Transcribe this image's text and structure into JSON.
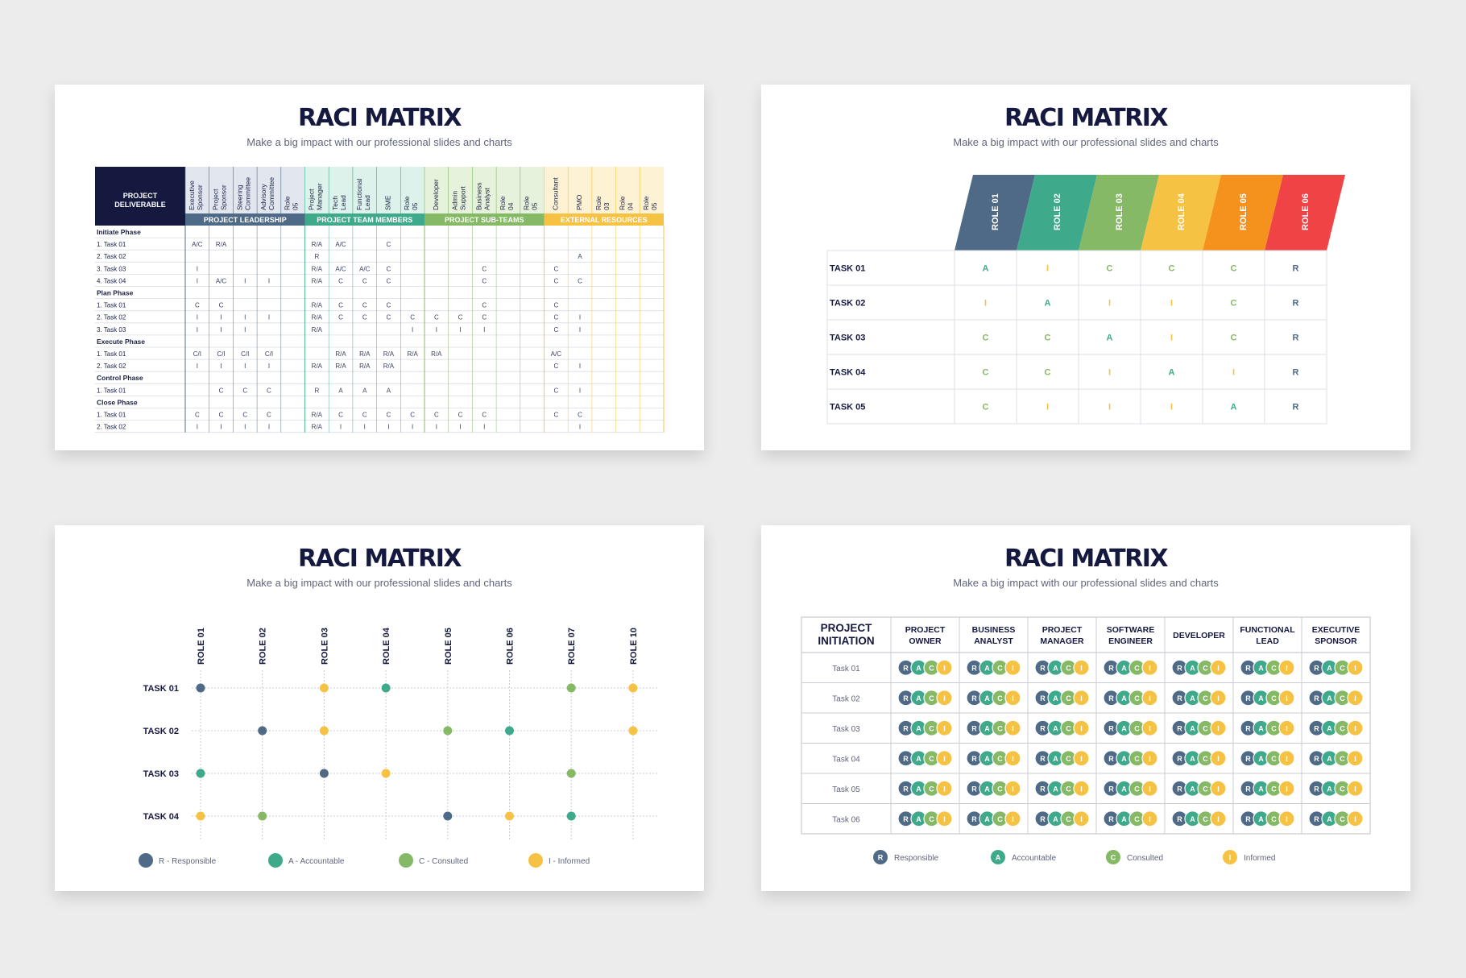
{
  "title": "RACI MATRIX",
  "subtitle": "Make a big impact with our professional slides and charts",
  "colors": {
    "navy": "#15193f",
    "slate": "#4f6a87",
    "green": "#3fa98b",
    "lime": "#86b965",
    "yellow": "#f6c243",
    "orange": "#f5921e",
    "red": "#ef4346"
  },
  "s1": {
    "deliverable": "PROJECT DELIVERABLE",
    "groups": [
      {
        "label": "PROJECT LEADERSHIP",
        "color": "#4f6a87",
        "tint": "#e1e6ef",
        "roles": [
          "Executive Sponsor",
          "Project Sponsor",
          "Steering Committee",
          "Advisory Committee",
          "Role 05"
        ]
      },
      {
        "label": "PROJECT TEAM MEMBERS",
        "color": "#3fa98b",
        "tint": "#ddf2ea",
        "roles": [
          "Project Manager",
          "Tech Lead",
          "Functional Lead",
          "SME",
          "Role 05"
        ]
      },
      {
        "label": "PROJECT SUB-TEAMS",
        "color": "#86b965",
        "tint": "#e7f2dc",
        "roles": [
          "Developer",
          "Admin Support",
          "Business Analyst",
          "Role 04",
          "Role 05"
        ]
      },
      {
        "label": "EXTERNAL RESOURCES",
        "color": "#f6c243",
        "tint": "#fdf2d3",
        "roles": [
          "Consultant",
          "PMO",
          "Role 03",
          "Role 04",
          "Role 05"
        ]
      }
    ],
    "rows": [
      {
        "label": "Initiate Phase",
        "phase": true
      },
      {
        "label": "1. Task 01",
        "cells": [
          "A/C",
          "R/A",
          "",
          "",
          "",
          "R/A",
          "A/C",
          "",
          "C",
          "",
          "",
          "",
          "",
          "",
          "",
          "",
          "",
          "",
          "",
          ""
        ]
      },
      {
        "label": "2. Task 02",
        "cells": [
          "",
          "",
          "",
          "",
          "",
          "R",
          "",
          "",
          "",
          "",
          "",
          "",
          "",
          "",
          "",
          "",
          "A",
          "",
          "",
          ""
        ]
      },
      {
        "label": "3. Task 03",
        "cells": [
          "I",
          "",
          "",
          "",
          "",
          "R/A",
          "A/C",
          "A/C",
          "C",
          "",
          "",
          "",
          "C",
          "",
          "",
          "C",
          "",
          "",
          "",
          ""
        ]
      },
      {
        "label": "4. Task 04",
        "cells": [
          "I",
          "A/C",
          "I",
          "I",
          "",
          "R/A",
          "C",
          "C",
          "C",
          "",
          "",
          "",
          "C",
          "",
          "",
          "C",
          "C",
          "",
          "",
          ""
        ]
      },
      {
        "label": "Plan Phase",
        "phase": true
      },
      {
        "label": "1. Task 01",
        "cells": [
          "C",
          "C",
          "",
          "",
          "",
          "R/A",
          "C",
          "C",
          "C",
          "",
          "",
          "",
          "C",
          "",
          "",
          "C",
          "",
          "",
          "",
          ""
        ]
      },
      {
        "label": "2. Task 02",
        "cells": [
          "I",
          "I",
          "I",
          "I",
          "",
          "R/A",
          "C",
          "C",
          "C",
          "C",
          "C",
          "C",
          "C",
          "",
          "",
          "C",
          "I",
          "",
          "",
          ""
        ]
      },
      {
        "label": "3. Task 03",
        "cells": [
          "I",
          "I",
          "I",
          "",
          "",
          "R/A",
          "",
          "",
          "",
          "I",
          "I",
          "I",
          "I",
          "",
          "",
          "C",
          "I",
          "",
          "",
          ""
        ]
      },
      {
        "label": "Execute Phase",
        "phase": true
      },
      {
        "label": "1. Task 01",
        "cells": [
          "C/I",
          "C/I",
          "C/I",
          "C/I",
          "",
          "",
          "R/A",
          "R/A",
          "R/A",
          "R/A",
          "R/A",
          "",
          "",
          "",
          "",
          "A/C",
          "",
          "",
          "",
          ""
        ]
      },
      {
        "label": "2. Task 02",
        "cells": [
          "I",
          "I",
          "I",
          "I",
          "",
          "R/A",
          "R/A",
          "R/A",
          "R/A",
          "",
          "",
          "",
          "",
          "",
          "",
          "C",
          "I",
          "",
          "",
          ""
        ]
      },
      {
        "label": "Control Phase",
        "phase": true
      },
      {
        "label": "1. Task 01",
        "cells": [
          "",
          "C",
          "C",
          "C",
          "",
          "R",
          "A",
          "A",
          "A",
          "",
          "",
          "",
          "",
          "",
          "",
          "C",
          "I",
          "",
          "",
          ""
        ]
      },
      {
        "label": "Close Phase",
        "phase": true
      },
      {
        "label": "1. Task 01",
        "cells": [
          "C",
          "C",
          "C",
          "C",
          "",
          "R/A",
          "C",
          "C",
          "C",
          "C",
          "C",
          "C",
          "C",
          "",
          "",
          "C",
          "C",
          "",
          "",
          ""
        ]
      },
      {
        "label": "2. Task 02",
        "cells": [
          "I",
          "I",
          "I",
          "I",
          "",
          "R/A",
          "I",
          "I",
          "I",
          "I",
          "I",
          "I",
          "I",
          "",
          "",
          "",
          "I",
          "",
          "",
          ""
        ]
      }
    ]
  },
  "s2": {
    "roles": [
      {
        "label": "ROLE 01",
        "color": "#4f6a87"
      },
      {
        "label": "ROLE 02",
        "color": "#3fa98b"
      },
      {
        "label": "ROLE 03",
        "color": "#86b965"
      },
      {
        "label": "ROLE 04",
        "color": "#f6c243"
      },
      {
        "label": "ROLE 05",
        "color": "#f5921e"
      },
      {
        "label": "ROLE 06",
        "color": "#ef4346"
      }
    ],
    "tasks": [
      {
        "label": "TASK 01",
        "cells": [
          "A",
          "I",
          "C",
          "C",
          "C",
          "R"
        ]
      },
      {
        "label": "TASK 02",
        "cells": [
          "I",
          "A",
          "I",
          "I",
          "C",
          "R"
        ]
      },
      {
        "label": "TASK 03",
        "cells": [
          "C",
          "C",
          "A",
          "I",
          "C",
          "R"
        ]
      },
      {
        "label": "TASK 04",
        "cells": [
          "C",
          "C",
          "I",
          "A",
          "I",
          "R"
        ]
      },
      {
        "label": "TASK 05",
        "cells": [
          "C",
          "I",
          "I",
          "I",
          "A",
          "R"
        ]
      }
    ]
  },
  "s3": {
    "roles": [
      "ROLE 01",
      "ROLE 02",
      "ROLE 03",
      "ROLE 04",
      "ROLE 05",
      "ROLE 06",
      "ROLE 07",
      "ROLE 10"
    ],
    "tasks": [
      {
        "label": "TASK 01",
        "cells": [
          "R",
          "",
          "I",
          "A",
          "",
          "",
          "C",
          "I"
        ]
      },
      {
        "label": "TASK 02",
        "cells": [
          "",
          "R",
          "I",
          "",
          "C",
          "A",
          "",
          "I"
        ]
      },
      {
        "label": "TASK 03",
        "cells": [
          "A",
          "",
          "R",
          "I",
          "",
          "",
          "C",
          ""
        ]
      },
      {
        "label": "TASK 04",
        "cells": [
          "I",
          "C",
          "",
          "",
          "R",
          "I",
          "A",
          ""
        ]
      }
    ],
    "legend": [
      {
        "key": "R",
        "label": "R - Responsible",
        "color": "#4f6a87"
      },
      {
        "key": "A",
        "label": "A - Accountable",
        "color": "#3fa98b"
      },
      {
        "key": "C",
        "label": "C - Consulted",
        "color": "#86b965"
      },
      {
        "key": "I",
        "label": "I - Informed",
        "color": "#f6c243"
      }
    ]
  },
  "s4": {
    "corner": [
      "PROJECT",
      "INITIATION"
    ],
    "roles": [
      [
        "PROJECT",
        "OWNER"
      ],
      [
        "BUSINESS",
        "ANALYST"
      ],
      [
        "PROJECT",
        "MANAGER"
      ],
      [
        "SOFTWARE",
        "ENGINEER"
      ],
      [
        "DEVELOPER"
      ],
      [
        "FUNCTIONAL",
        "LEAD"
      ],
      [
        "EXECUTIVE",
        "SPONSOR"
      ]
    ],
    "tasks": [
      "Task 01",
      "Task 02",
      "Task 03",
      "Task 04",
      "Task 05",
      "Task 06"
    ],
    "letters": [
      "R",
      "A",
      "C",
      "I"
    ],
    "legend": [
      {
        "key": "R",
        "label": "Responsible",
        "color": "#4f6a87"
      },
      {
        "key": "A",
        "label": "Accountable",
        "color": "#3fa98b"
      },
      {
        "key": "C",
        "label": "Consulted",
        "color": "#86b965"
      },
      {
        "key": "I",
        "label": "Informed",
        "color": "#f6c243"
      }
    ]
  }
}
